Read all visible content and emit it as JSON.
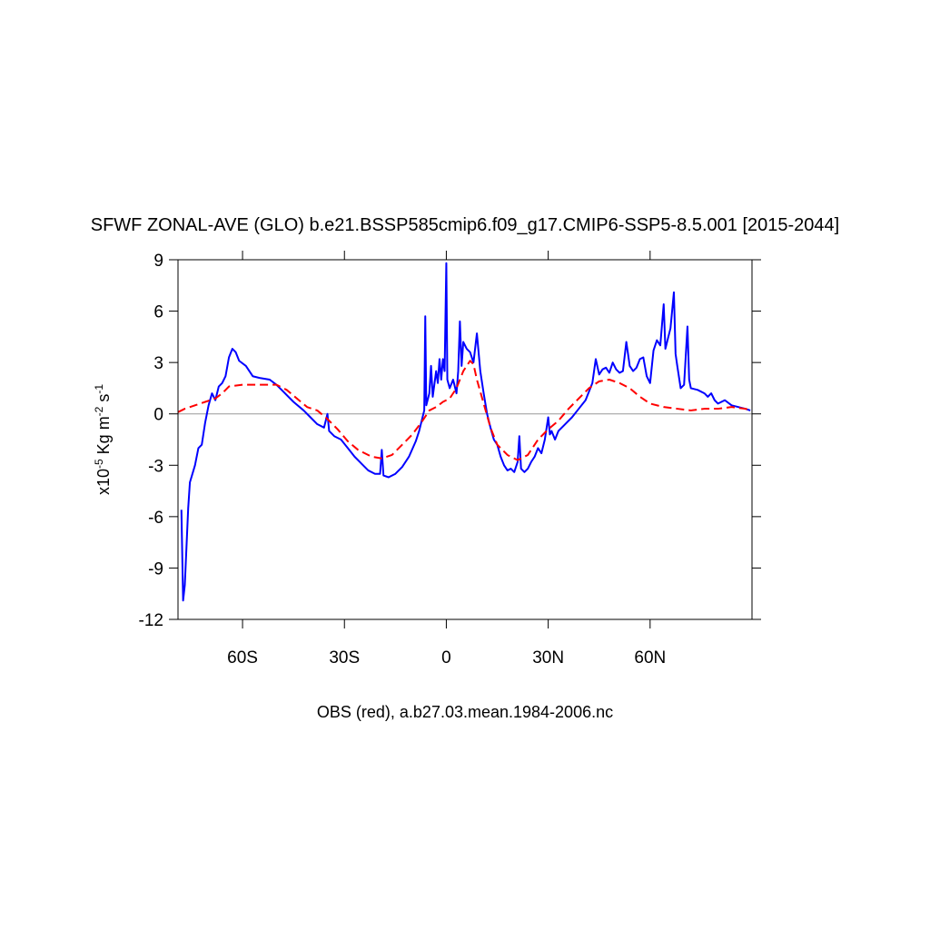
{
  "chart_data": {
    "type": "line",
    "title": "SFWF ZONAL-AVE (GLO) b.e21.BSSP585cmip6.f09_g17.CMIP6-SSP5-8.5.001 [2015-2044]",
    "y_label": [
      "x10",
      "-5",
      " Kg m",
      "-2",
      " s",
      "-1"
    ],
    "caption": "OBS (red), a.b27.03.mean.1984-2006.nc",
    "xlim": [
      -79,
      90
    ],
    "ylim": [
      -12,
      9
    ],
    "xticks": [
      {
        "value": -60,
        "label": "60S"
      },
      {
        "value": -30,
        "label": "30S"
      },
      0,
      {
        "value": 30,
        "label": "30N"
      },
      {
        "value": 60,
        "label": "60N"
      }
    ],
    "yticks": [
      -12,
      -9,
      -6,
      -3,
      0,
      3,
      6,
      9
    ],
    "zero_line": true,
    "series": [
      {
        "color": "#0000ff",
        "dash": false,
        "x": [
          -78,
          -77.5,
          -77,
          -76,
          -75.5,
          -74,
          -73,
          -72,
          -71,
          -70,
          -69,
          -68,
          -67,
          -66,
          -65,
          -64,
          -63,
          -62,
          -61,
          -59,
          -57,
          -55,
          -52,
          -50,
          -48,
          -45,
          -42,
          -40,
          -38,
          -36,
          -35,
          -34.5,
          -33,
          -31,
          -29,
          -27,
          -25,
          -23,
          -21,
          -19.5,
          -19,
          -18.5,
          -17,
          -15,
          -13,
          -11,
          -9,
          -8,
          -7,
          -6.5,
          -6.2,
          -5.9,
          -5,
          -4.5,
          -4,
          -3,
          -2.5,
          -2,
          -1.5,
          -1,
          -0.5,
          0,
          0.3,
          1,
          2,
          3,
          3.5,
          4,
          4.5,
          5,
          6,
          7,
          8,
          9,
          10,
          11,
          12,
          13,
          14,
          15,
          16,
          17,
          18,
          19,
          20,
          21,
          21.5,
          22,
          23,
          24,
          25,
          26,
          27,
          28,
          29,
          30,
          30.5,
          31,
          32,
          33,
          35,
          37,
          39,
          41,
          42,
          43,
          44,
          45,
          46,
          47,
          48,
          49,
          50,
          51,
          52,
          53,
          54,
          55,
          56,
          57,
          58,
          59,
          60,
          61,
          62,
          63,
          64,
          64.5,
          66,
          67,
          67.5,
          68,
          69,
          70,
          71,
          71.5,
          72,
          74,
          76,
          77,
          78,
          79,
          80,
          82,
          84,
          86,
          88,
          89.5
        ],
        "values": [
          -5.6,
          -10.9,
          -10,
          -5.5,
          -4,
          -3,
          -2,
          -1.8,
          -0.5,
          0.5,
          1.2,
          0.8,
          1.6,
          1.8,
          2.2,
          3.3,
          3.8,
          3.6,
          3.1,
          2.8,
          2.2,
          2.1,
          2.0,
          1.7,
          1.3,
          0.7,
          0.2,
          -0.2,
          -0.6,
          -0.8,
          0,
          -1.0,
          -1.3,
          -1.5,
          -2.0,
          -2.5,
          -2.9,
          -3.3,
          -3.5,
          -3.5,
          -2.1,
          -3.6,
          -3.7,
          -3.5,
          -3.1,
          -2.5,
          -1.6,
          -1.0,
          -0.2,
          0.2,
          5.7,
          0.5,
          1.2,
          2.8,
          1.0,
          2.5,
          1.8,
          3.2,
          2.0,
          3.2,
          2.5,
          8.8,
          2.0,
          1.5,
          2.0,
          1.2,
          2.5,
          5.4,
          2.8,
          4.2,
          3.8,
          3.6,
          3.0,
          4.7,
          2.5,
          1.2,
          0,
          -0.8,
          -1.5,
          -1.8,
          -2.5,
          -3.0,
          -3.3,
          -3.2,
          -3.4,
          -2.8,
          -1.3,
          -3.2,
          -3.4,
          -3.2,
          -2.8,
          -2.5,
          -2.0,
          -2.3,
          -1.5,
          -0.2,
          -1.2,
          -1.0,
          -1.5,
          -1.0,
          -0.6,
          -0.2,
          0.3,
          0.8,
          1.3,
          1.8,
          3.2,
          2.3,
          2.6,
          2.7,
          2.4,
          3.0,
          2.6,
          2.4,
          2.5,
          4.2,
          2.8,
          2.5,
          2.7,
          3.2,
          3.3,
          2.2,
          1.8,
          3.7,
          4.3,
          4.0,
          6.4,
          3.8,
          5.0,
          7.1,
          3.5,
          2.8,
          1.5,
          1.7,
          5.1,
          2.0,
          1.5,
          1.4,
          1.2,
          1.0,
          1.2,
          0.8,
          0.6,
          0.8,
          0.5,
          0.4,
          0.3,
          0.2
        ]
      },
      {
        "color": "#ff0000",
        "dash": true,
        "x": [
          -79,
          -77,
          -74,
          -71,
          -68,
          -66,
          -64,
          -60,
          -55,
          -50,
          -47,
          -44,
          -41,
          -38,
          -35,
          -32,
          -29,
          -26,
          -22,
          -19,
          -16,
          -13,
          -10,
          -7,
          -5,
          -3,
          -1,
          1,
          3,
          5,
          7,
          8,
          9,
          11,
          13,
          15,
          18,
          21,
          24,
          27,
          30,
          33,
          36,
          39,
          42,
          45,
          48,
          51,
          54,
          57,
          60,
          64,
          68,
          72,
          76,
          80,
          84,
          88,
          90
        ],
        "values": [
          0.1,
          0.3,
          0.5,
          0.7,
          0.9,
          1.2,
          1.6,
          1.7,
          1.7,
          1.7,
          1.4,
          0.9,
          0.4,
          0.2,
          -0.3,
          -0.9,
          -1.6,
          -2.1,
          -2.5,
          -2.6,
          -2.4,
          -1.8,
          -1.2,
          -0.4,
          0.2,
          0.4,
          0.7,
          0.9,
          1.5,
          2.5,
          3.1,
          2.9,
          2.0,
          0.6,
          -0.8,
          -1.8,
          -2.4,
          -2.7,
          -2.4,
          -1.5,
          -0.9,
          -0.4,
          0.3,
          0.9,
          1.5,
          1.9,
          2.0,
          1.8,
          1.5,
          1.0,
          0.6,
          0.4,
          0.3,
          0.2,
          0.3,
          0.3,
          0.4,
          0.3,
          0.2
        ]
      }
    ]
  }
}
